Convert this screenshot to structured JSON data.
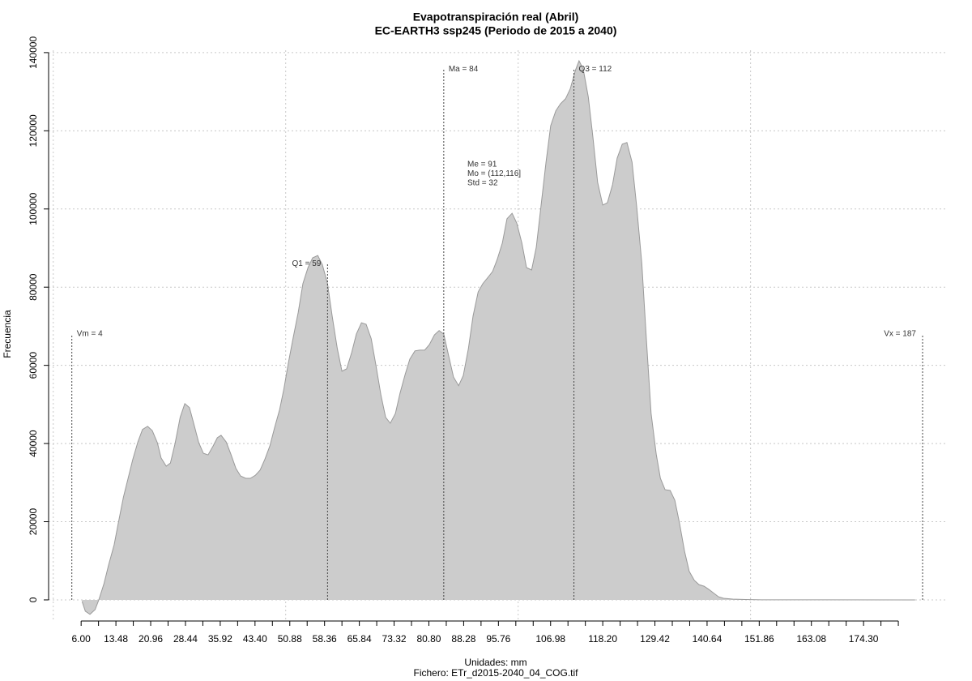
{
  "chart_data": {
    "type": "area",
    "title": "Evapotranspiración real (Abril)",
    "subtitle": "EC-EARTH3 ssp245 (Periodo de 2015 a 2040)",
    "xlabel": "Unidades: mm",
    "caption": "Fichero: ETr_d2015-2040_04_COG.tif",
    "ylabel": "Frecuencia",
    "fill": "#cccccc",
    "color": "#9a9a9a",
    "grid": true,
    "xlim": [
      -1,
      192.4
    ],
    "ylim": [
      -5400,
      140600
    ],
    "xgrid": [
      0,
      50,
      100,
      150
    ],
    "yticks": [
      0,
      20000,
      40000,
      60000,
      80000,
      100000,
      120000,
      140000
    ],
    "xticks": [
      {
        "value": 6,
        "label": "6.00"
      },
      {
        "value": 9.74,
        "label": null
      },
      {
        "value": 13.48,
        "label": "13.48"
      },
      {
        "value": 17.22,
        "label": null
      },
      {
        "value": 20.96,
        "label": "20.96"
      },
      {
        "value": 24.7,
        "label": null
      },
      {
        "value": 28.44,
        "label": "28.44"
      },
      {
        "value": 32.18,
        "label": null
      },
      {
        "value": 35.92,
        "label": "35.92"
      },
      {
        "value": 39.66,
        "label": null
      },
      {
        "value": 43.4,
        "label": "43.40"
      },
      {
        "value": 47.14,
        "label": null
      },
      {
        "value": 50.88,
        "label": "50.88"
      },
      {
        "value": 54.62,
        "label": null
      },
      {
        "value": 58.36,
        "label": "58.36"
      },
      {
        "value": 62.1,
        "label": null
      },
      {
        "value": 65.84,
        "label": "65.84"
      },
      {
        "value": 69.58,
        "label": null
      },
      {
        "value": 73.32,
        "label": "73.32"
      },
      {
        "value": 77.06,
        "label": null
      },
      {
        "value": 80.8,
        "label": "80.80"
      },
      {
        "value": 84.54,
        "label": null
      },
      {
        "value": 88.28,
        "label": "88.28"
      },
      {
        "value": 92.02,
        "label": null
      },
      {
        "value": 95.76,
        "label": "95.76"
      },
      {
        "value": 99.5,
        "label": null
      },
      {
        "value": 103.24,
        "label": null
      },
      {
        "value": 106.98,
        "label": "106.98"
      },
      {
        "value": 110.72,
        "label": null
      },
      {
        "value": 114.46,
        "label": null
      },
      {
        "value": 118.2,
        "label": "118.20"
      },
      {
        "value": 121.94,
        "label": null
      },
      {
        "value": 125.68,
        "label": null
      },
      {
        "value": 129.42,
        "label": "129.42"
      },
      {
        "value": 133.16,
        "label": null
      },
      {
        "value": 136.9,
        "label": null
      },
      {
        "value": 140.64,
        "label": "140.64"
      },
      {
        "value": 144.38,
        "label": null
      },
      {
        "value": 148.12,
        "label": null
      },
      {
        "value": 151.86,
        "label": "151.86"
      },
      {
        "value": 155.6,
        "label": null
      },
      {
        "value": 159.34,
        "label": null
      },
      {
        "value": 163.08,
        "label": "163.08"
      },
      {
        "value": 166.82,
        "label": null
      },
      {
        "value": 170.56,
        "label": null
      },
      {
        "value": 174.3,
        "label": "174.30"
      },
      {
        "value": 178.04,
        "label": null
      },
      {
        "value": 181.78,
        "label": null
      }
    ],
    "x": [
      6.2,
      6.9,
      7.9,
      9.0,
      9.8,
      10.9,
      11.9,
      13.1,
      14.0,
      15.1,
      16.1,
      17.1,
      18.2,
      19.2,
      20.3,
      21.3,
      22.4,
      23.2,
      24.3,
      25.2,
      26.2,
      27.3,
      28.3,
      29.3,
      30.2,
      31.3,
      32.3,
      33.3,
      34.4,
      35.3,
      36.1,
      37.2,
      38.2,
      39.3,
      40.3,
      41.4,
      42.4,
      43.5,
      44.5,
      45.5,
      46.6,
      47.6,
      48.7,
      49.6,
      50.6,
      51.6,
      52.7,
      53.7,
      54.8,
      55.8,
      56.9,
      57.9,
      59.0,
      60.0,
      61.1,
      62.1,
      63.1,
      64.2,
      65.2,
      66.3,
      67.3,
      68.4,
      69.4,
      70.5,
      71.5,
      72.5,
      73.6,
      74.6,
      75.7,
      76.7,
      77.8,
      78.8,
      79.9,
      80.9,
      82.0,
      83.0,
      84.0,
      85.1,
      86.1,
      87.2,
      88.2,
      89.3,
      90.3,
      91.4,
      92.4,
      93.5,
      94.5,
      95.5,
      96.6,
      97.6,
      98.7,
      99.7,
      100.8,
      101.8,
      102.9,
      103.9,
      105.0,
      106.0,
      107.0,
      108.1,
      109.1,
      110.2,
      111.2,
      112.3,
      113.1,
      114.0,
      115.1,
      116.1,
      117.1,
      118.2,
      119.2,
      120.3,
      121.3,
      122.4,
      123.4,
      124.5,
      125.5,
      126.6,
      127.6,
      128.6,
      129.7,
      130.6,
      131.6,
      132.7,
      133.7,
      134.7,
      135.8,
      136.8,
      137.9,
      138.9,
      140.0,
      141.0,
      142.1,
      143.1,
      144.2,
      146.2,
      148.9,
      152.3,
      162.8,
      185.4
    ],
    "values": [
      -400,
      -2900,
      -3700,
      -2500,
      0,
      4100,
      8900,
      14100,
      19700,
      26300,
      31100,
      35900,
      40400,
      43600,
      44400,
      43300,
      40200,
      36300,
      34200,
      35000,
      40000,
      46700,
      50200,
      49200,
      45200,
      40200,
      37500,
      37100,
      39400,
      41500,
      42100,
      40400,
      37300,
      33600,
      31700,
      31100,
      31100,
      31900,
      33200,
      35900,
      39400,
      44000,
      48700,
      53900,
      60800,
      67000,
      73600,
      80900,
      85000,
      87500,
      88100,
      85700,
      80900,
      72600,
      64300,
      58500,
      59100,
      63300,
      68000,
      70900,
      70500,
      66800,
      60100,
      52300,
      46700,
      45200,
      47700,
      52900,
      57700,
      61600,
      63700,
      63900,
      63900,
      65300,
      67800,
      68900,
      68000,
      62200,
      57000,
      54800,
      57400,
      64300,
      72600,
      78800,
      80900,
      82500,
      84000,
      87100,
      91300,
      97500,
      98900,
      96400,
      91300,
      85000,
      84400,
      90200,
      101600,
      112000,
      121300,
      125100,
      126900,
      128200,
      130700,
      135400,
      137900,
      135800,
      128600,
      118200,
      106800,
      101000,
      101600,
      106200,
      113000,
      116600,
      117000,
      112000,
      100600,
      86100,
      66400,
      47700,
      37300,
      31100,
      28200,
      28000,
      25500,
      19700,
      12400,
      7300,
      5000,
      3900,
      3500,
      2700,
      1700,
      800,
      400,
      200,
      100,
      30,
      10,
      0
    ],
    "annotations": [
      {
        "label": "Vm = 4",
        "x": 4,
        "y": 68000,
        "label_side": "right"
      },
      {
        "label": "Q1 = 59",
        "x": 59,
        "y": 86000,
        "label_side": "left"
      },
      {
        "label": "Ma = 84",
        "x": 84,
        "y": 135800,
        "label_side": "right"
      },
      {
        "label": "Q3 = 112",
        "x": 112,
        "y": 135800,
        "label_side": "right"
      },
      {
        "label": "Vx = 187",
        "x": 187,
        "y": 68000,
        "label_side": "left"
      }
    ],
    "stats": [
      "Me = 91",
      "Mo = (112,116]",
      "Std = 32"
    ]
  }
}
